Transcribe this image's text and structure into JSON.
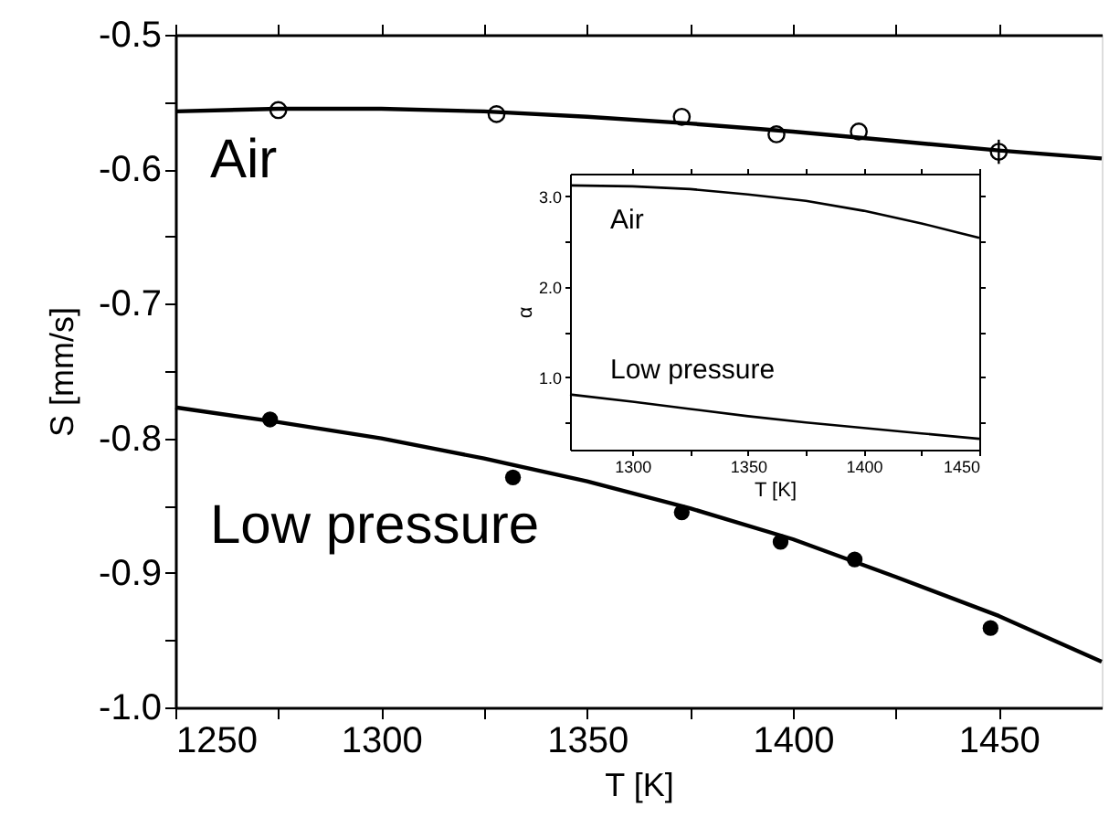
{
  "chart_data": [
    {
      "type": "scatter",
      "xlabel": "T [K]",
      "ylabel": "S [mm/s]",
      "xlim": [
        1250,
        1475
      ],
      "ylim": [
        -1.0,
        -0.5
      ],
      "grid": false,
      "xticks": [
        1250,
        {
          "value": 1275,
          "label": null
        },
        1300,
        {
          "value": 1325,
          "label": null
        },
        1350,
        {
          "value": 1375,
          "label": null
        },
        1400,
        {
          "value": 1425,
          "label": null
        },
        1450
      ],
      "yticks": [
        {
          "value": -1.0,
          "label": "-1.0"
        },
        {
          "value": -0.95,
          "label": null
        },
        {
          "value": -0.9,
          "label": "-0.9"
        },
        {
          "value": -0.85,
          "label": null
        },
        {
          "value": -0.8,
          "label": "-0.8"
        },
        {
          "value": -0.75,
          "label": null
        },
        {
          "value": -0.7,
          "label": "-0.7"
        },
        {
          "value": -0.65,
          "label": null
        },
        {
          "value": -0.6,
          "label": "-0.6"
        },
        {
          "value": -0.55,
          "label": null
        },
        {
          "value": -0.5,
          "label": "-0.5"
        }
      ],
      "series": [
        {
          "name": "Air",
          "type": "scatter",
          "marker": "circle",
          "color": "#000000",
          "x": [
            1275,
            1328,
            1373,
            1396,
            1416,
            1450
          ],
          "values": [
            -0.556,
            -0.559,
            -0.561,
            -0.574,
            -0.572,
            -0.587
          ],
          "errors": [
            null,
            null,
            null,
            null,
            null,
            0.009
          ]
        },
        {
          "type": "line",
          "color": "#000000",
          "x": [
            1250,
            1275,
            1300,
            1325,
            1350,
            1375,
            1400,
            1425,
            1450,
            1475
          ],
          "values": [
            -0.557,
            -0.555,
            -0.555,
            -0.557,
            -0.561,
            -0.566,
            -0.572,
            -0.579,
            -0.586,
            -0.592
          ]
        },
        {
          "name": "Low pressure",
          "type": "scatter",
          "marker": "circle",
          "color": "#000000",
          "x": [
            1273,
            1332,
            1373,
            1397,
            1415,
            1448
          ],
          "values": [
            -0.786,
            -0.829,
            -0.855,
            -0.877,
            -0.89,
            -0.941
          ]
        },
        {
          "type": "line",
          "color": "#000000",
          "x": [
            1250,
            1275,
            1300,
            1325,
            1350,
            1375,
            1400,
            1425,
            1450,
            1475
          ],
          "values": [
            -0.777,
            -0.788,
            -0.8,
            -0.815,
            -0.832,
            -0.852,
            -0.875,
            -0.903,
            -0.932,
            -0.966
          ]
        }
      ]
    },
    {
      "type": "line",
      "xlabel": "T [K]",
      "ylabel": "α",
      "xlim": [
        1273,
        1450
      ],
      "ylim": [
        0.2,
        3.25
      ],
      "grid": false,
      "xticks": [
        1300,
        {
          "value": 1325,
          "label": null
        },
        1350,
        {
          "value": 1375,
          "label": null
        },
        1400,
        {
          "value": 1425,
          "label": null
        },
        1450
      ],
      "yticks": [
        {
          "value": 0.5,
          "label": null
        },
        {
          "value": 1.0,
          "label": "1.0"
        },
        {
          "value": 1.5,
          "label": null
        },
        {
          "value": 2.0,
          "label": "2.0"
        },
        {
          "value": 2.5,
          "label": null
        },
        {
          "value": 3.0,
          "label": "3.0"
        }
      ],
      "series": [
        {
          "name": "Air",
          "color": "#000000",
          "x": [
            1273,
            1300,
            1325,
            1350,
            1375,
            1400,
            1425,
            1450
          ],
          "values": [
            3.12,
            3.11,
            3.08,
            3.02,
            2.95,
            2.84,
            2.7,
            2.54
          ]
        },
        {
          "name": "Low pressure",
          "color": "#000000",
          "x": [
            1273,
            1300,
            1325,
            1350,
            1375,
            1400,
            1425,
            1450
          ],
          "values": [
            0.81,
            0.73,
            0.65,
            0.57,
            0.5,
            0.44,
            0.38,
            0.32
          ]
        }
      ]
    }
  ]
}
